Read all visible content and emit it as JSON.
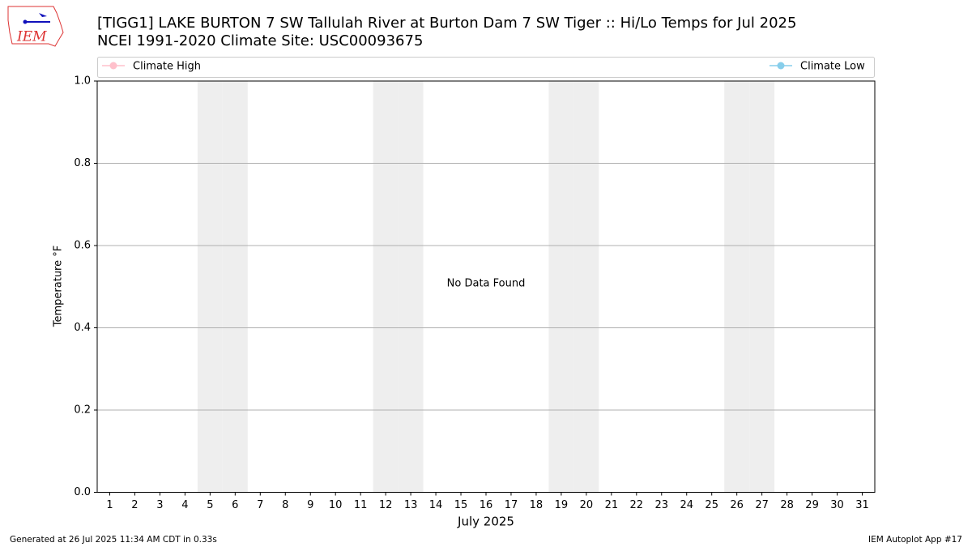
{
  "logo": "IEM",
  "chart_data": {
    "type": "line",
    "title": "[TIGG1] LAKE BURTON 7 SW Tallulah River at Burton Dam 7 SW Tiger :: Hi/Lo Temps for Jul 2025",
    "subtitle": "NCEI 1991-2020 Climate Site: USC00093675",
    "x_label": "July 2025",
    "y_label": "Temperature °F",
    "annotation": "No Data Found",
    "x": [
      1,
      2,
      3,
      4,
      5,
      6,
      7,
      8,
      9,
      10,
      11,
      12,
      13,
      14,
      15,
      16,
      17,
      18,
      19,
      20,
      21,
      22,
      23,
      24,
      25,
      26,
      27,
      28,
      29,
      30,
      31
    ],
    "xlim": [
      0.5,
      31.5
    ],
    "xticks": [
      1,
      2,
      3,
      4,
      5,
      6,
      7,
      8,
      9,
      10,
      11,
      12,
      13,
      14,
      15,
      16,
      17,
      18,
      19,
      20,
      21,
      22,
      23,
      24,
      25,
      26,
      27,
      28,
      29,
      30,
      31
    ],
    "ylim": [
      0,
      1
    ],
    "yticks": [
      {
        "value": 0,
        "label": "0.0"
      },
      {
        "value": 0.2,
        "label": "0.2"
      },
      {
        "value": 0.4,
        "label": "0.4"
      },
      {
        "value": 0.6,
        "label": "0.6"
      },
      {
        "value": 0.8,
        "label": "0.8"
      },
      {
        "value": 1,
        "label": "1.0"
      }
    ],
    "shaded_days": [
      5,
      6,
      12,
      13,
      19,
      20,
      26,
      27
    ],
    "shade_color": "#eeeeee",
    "grid": true,
    "series": [
      {
        "name": "Climate High",
        "color": "#ffc0cb",
        "values": [
          null,
          null,
          null,
          null,
          null,
          null,
          null,
          null,
          null,
          null,
          null,
          null,
          null,
          null,
          null,
          null,
          null,
          null,
          null,
          null,
          null,
          null,
          null,
          null,
          null,
          null,
          null,
          null,
          null,
          null,
          null
        ]
      },
      {
        "name": "Climate Low",
        "color": "#87ceeb",
        "values": [
          null,
          null,
          null,
          null,
          null,
          null,
          null,
          null,
          null,
          null,
          null,
          null,
          null,
          null,
          null,
          null,
          null,
          null,
          null,
          null,
          null,
          null,
          null,
          null,
          null,
          null,
          null,
          null,
          null,
          null,
          null
        ]
      }
    ],
    "footer_left": "Generated at 26 Jul 2025 11:34 AM CDT in 0.33s",
    "footer_right": "IEM Autoplot App #17"
  }
}
